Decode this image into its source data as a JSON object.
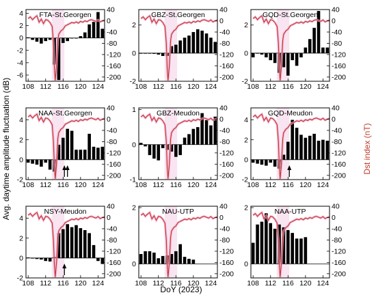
{
  "chart_data": {
    "type": "bar",
    "xlabel": "DoY (2023)",
    "ylabel": "Avg. daytime amplitude fluctuation (dB)",
    "y2label": "Dst index (nT)",
    "xlim": [
      107.5,
      125.5
    ],
    "xticks": [
      108,
      112,
      116,
      120,
      124
    ],
    "y2lim": [
      -215,
      40
    ],
    "y2ticks": [
      40,
      0,
      -40,
      -80,
      -120,
      -160,
      -200
    ],
    "dst": {
      "name": "",
      "color": "#c0392b",
      "x": [
        108,
        108.5,
        109,
        109.5,
        110,
        110.5,
        111,
        111.5,
        112,
        112.5,
        113,
        113.5,
        113.8,
        114,
        114.2,
        114.5,
        114.8,
        115,
        115.5,
        116,
        116.5,
        117,
        117.5,
        118,
        118.5,
        119,
        119.5,
        120,
        120.5,
        121,
        121.5,
        122,
        122.5,
        123,
        123.5,
        124,
        124.5,
        125,
        125.5
      ],
      "values": [
        8,
        14,
        4,
        12,
        18,
        -5,
        6,
        -10,
        4,
        2,
        -6,
        -20,
        -80,
        -165,
        -212,
        -160,
        -70,
        -48,
        -36,
        -30,
        -18,
        -14,
        -10,
        -6,
        -8,
        -4,
        -8,
        -2,
        -5,
        0,
        -3,
        2,
        4,
        1,
        -2,
        3,
        -4,
        0,
        2
      ]
    },
    "panels": [
      {
        "title": "FTA-St.Georgen",
        "ylim": [
          -7,
          4.6
        ],
        "yticks": [
          -6,
          -4,
          -2,
          0,
          2,
          4
        ],
        "x": [
          108,
          109,
          110,
          111,
          112,
          113,
          114,
          115,
          116,
          117,
          118,
          119,
          120,
          121,
          122,
          123,
          124,
          125
        ],
        "values": [
          0.1,
          -0.3,
          -0.6,
          -0.9,
          -0.5,
          -0.3,
          -4.3,
          -6.8,
          -0.8,
          -0.5,
          0,
          0,
          0.3,
          0.9,
          2.2,
          2.6,
          4.2,
          1.5
        ],
        "arrows": []
      },
      {
        "title": "GBZ-St.Georgen",
        "ylim": [
          -2,
          3.1
        ],
        "yticks": [
          -2,
          0,
          2
        ],
        "x": [
          108,
          109,
          110,
          111,
          112,
          113,
          114,
          115,
          116,
          117,
          118,
          119,
          120,
          121,
          122,
          123,
          124,
          125
        ],
        "values": [
          0,
          0,
          0,
          -0.05,
          -0.1,
          -0.2,
          -0.2,
          0.5,
          0.6,
          0.9,
          1.1,
          1.25,
          1.5,
          1.7,
          1.6,
          1.4,
          1.1,
          0.8
        ],
        "arrows": []
      },
      {
        "title": "GQD-St.Georgen",
        "ylim": [
          -2,
          3.1
        ],
        "yticks": [
          -2,
          0,
          2
        ],
        "x": [
          108,
          109,
          110,
          111,
          112,
          113,
          114,
          115,
          116,
          117,
          118,
          119,
          120,
          121,
          122,
          123,
          124,
          125
        ],
        "values": [
          -0.3,
          0,
          -0.1,
          -0.3,
          -0.5,
          -0.7,
          -1.4,
          -1.0,
          -1.6,
          -0.5,
          -0.9,
          -0.3,
          0.4,
          1.0,
          1.8,
          3.0,
          0.4,
          0.4
        ],
        "arrows": []
      },
      {
        "title": "NAA-St.Georgen",
        "ylim": [
          -2,
          5.2
        ],
        "yticks": [
          -2,
          0,
          2,
          4
        ],
        "x": [
          108,
          109,
          110,
          111,
          112,
          113,
          114,
          115,
          116,
          117,
          118,
          119,
          120,
          121,
          122,
          123,
          124,
          125
        ],
        "values": [
          -0.3,
          -0.4,
          -0.5,
          -0.7,
          -0.3,
          -1.0,
          -1.2,
          1.5,
          2.2,
          3.1,
          2.9,
          1.0,
          1.0,
          1.0,
          2.6,
          1.3,
          1.2,
          1.3
        ],
        "arrows": [
          116.3,
          117.0
        ]
      },
      {
        "title": "GBZ-Meudon",
        "ylim": [
          -1,
          1.05
        ],
        "yticks": [
          -1,
          0,
          1
        ],
        "x": [
          108,
          109,
          110,
          111,
          112,
          113,
          114,
          115,
          116,
          117,
          118,
          119,
          120,
          121,
          122,
          123,
          124,
          125
        ],
        "values": [
          0.05,
          -0.05,
          -0.3,
          -0.4,
          -0.45,
          -0.1,
          -0.15,
          -0.2,
          -0.35,
          -0.3,
          0.2,
          0.3,
          0.45,
          0.5,
          0.9,
          0.7,
          0.55,
          0.8
        ],
        "arrows": []
      },
      {
        "title": "GQD-Meudon",
        "ylim": [
          -2,
          5.2
        ],
        "yticks": [
          -2,
          0,
          2,
          4
        ],
        "x": [
          108,
          109,
          110,
          111,
          112,
          113,
          114,
          115,
          116,
          117,
          118,
          119,
          120,
          121,
          122,
          123,
          124,
          125
        ],
        "values": [
          -0.3,
          -0.4,
          -0.5,
          -0.6,
          -0.3,
          -0.7,
          -0.9,
          0.5,
          1.8,
          4.0,
          3.2,
          2.5,
          2.2,
          2.4,
          2.6,
          1.9,
          2.0,
          1.9
        ],
        "arrows": [
          116.3
        ]
      },
      {
        "title": "NSY-Meudon",
        "ylim": [
          -2,
          5.2
        ],
        "yticks": [
          -2,
          0,
          2,
          4
        ],
        "x": [
          108,
          109,
          110,
          111,
          112,
          113,
          114,
          115,
          116,
          117,
          118,
          119,
          120,
          121,
          122,
          123,
          124,
          125
        ],
        "values": [
          0.05,
          -0.05,
          -0.1,
          -0.15,
          -0.3,
          -0.35,
          0.1,
          2.5,
          2.9,
          3.4,
          3.1,
          3.3,
          3.0,
          2.8,
          2.5,
          1.3,
          -0.3,
          -0.6
        ],
        "arrows": [
          116.3
        ]
      },
      {
        "title": "NAU-UTP",
        "ylim": [
          -0.5,
          2.05
        ],
        "yticks": [
          0,
          2
        ],
        "x": [
          108,
          109,
          110,
          111,
          112,
          113,
          114,
          115,
          116,
          117,
          118,
          119,
          120
        ],
        "values": [
          0.35,
          0.45,
          0.45,
          0.4,
          0.2,
          0.28,
          0.3,
          0.35,
          0.45,
          0.7,
          0.25,
          0.18,
          0.15
        ],
        "arrows": []
      },
      {
        "title": "NAA-UTP",
        "ylim": [
          -0.5,
          2.05
        ],
        "yticks": [
          0,
          2
        ],
        "x": [
          108,
          109,
          110,
          111,
          112,
          113,
          114,
          115,
          116,
          117,
          118,
          119,
          120
        ],
        "values": [
          0.75,
          1.4,
          1.5,
          1.8,
          1.45,
          1.25,
          1.4,
          1.3,
          1.2,
          1.1,
          0.9,
          0.9,
          0.95
        ],
        "arrows": []
      }
    ]
  }
}
